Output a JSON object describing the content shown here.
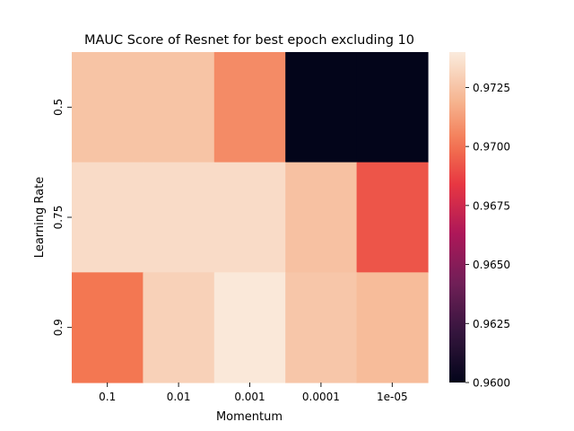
{
  "chart_data": {
    "type": "heatmap",
    "title": "MAUC Score of Resnet for best epoch excluding 10",
    "xlabel": "Momentum",
    "ylabel": "Learning Rate",
    "x_categories": [
      "0.1",
      "0.01",
      "0.001",
      "0.0001",
      "1e-05"
    ],
    "y_categories": [
      "0.5",
      "0.75",
      "0.9"
    ],
    "values": [
      [
        0.9725,
        0.9725,
        0.9707,
        0.96,
        0.96
      ],
      [
        0.9734,
        0.9734,
        0.9734,
        0.9724,
        0.9692
      ],
      [
        0.9701,
        0.973,
        0.9739,
        0.9726,
        0.9722
      ]
    ],
    "colorbar": {
      "vmin": 0.96,
      "vmax": 0.974,
      "ticks": [
        "0.9600",
        "0.9625",
        "0.9650",
        "0.9675",
        "0.9700",
        "0.9725"
      ],
      "colormap": "rocket",
      "placement": "right"
    },
    "grid": false
  }
}
